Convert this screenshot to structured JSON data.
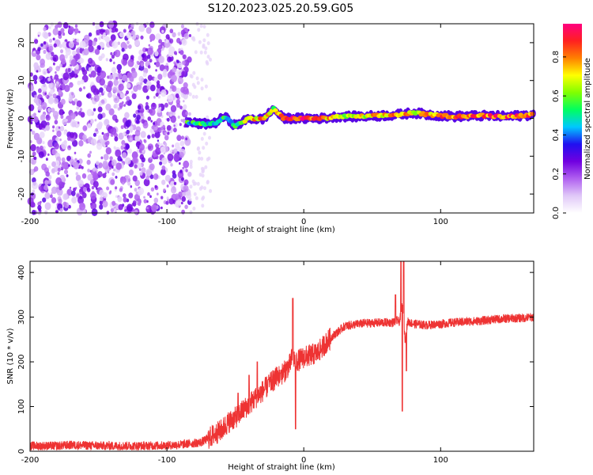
{
  "title": "S120.2023.025.20.59.G05",
  "chart_data": [
    {
      "type": "heatmap",
      "xlabel": "Height of straight line (km)",
      "ylabel": "Frequency (Hz)",
      "xlim": [
        -200,
        168
      ],
      "ylim": [
        -25,
        25
      ],
      "xticks": [
        -200,
        -100,
        0,
        100
      ],
      "yticks": [
        -20,
        -10,
        0,
        10,
        20
      ],
      "colorbar": {
        "label": "Normalized spectral amplitude",
        "range": [
          0.0,
          0.97
        ],
        "ticks": [
          "0.0",
          "0.2",
          "0.4",
          "0.6",
          "0.8"
        ],
        "colors": [
          "#ffffff",
          "#e0c8f8",
          "#b060f0",
          "#7000e0",
          "#2010f0",
          "#00c8ff",
          "#00ff60",
          "#80ff00",
          "#ffff00",
          "#ff8000",
          "#ff2020",
          "#ff0080"
        ]
      },
      "noise_region_x": [
        -200,
        -83
      ],
      "noise_region_amplitude": [
        0.05,
        0.3
      ],
      "signal_trace": {
        "x": [
          -85,
          -75,
          -65,
          -58,
          -50,
          -40,
          -30,
          -22,
          -15,
          -5,
          5,
          15,
          25,
          40,
          55,
          70,
          80,
          90,
          110,
          130,
          150,
          168
        ],
        "frequency": [
          -1,
          -1.5,
          -1.3,
          0.5,
          -2,
          0,
          -0.3,
          2.5,
          0,
          0,
          0,
          0,
          0.5,
          0.5,
          0.7,
          1,
          1.5,
          1,
          0.5,
          0.7,
          0.5,
          1
        ],
        "amplitude": [
          0.5,
          0.55,
          0.5,
          0.55,
          0.5,
          0.7,
          0.8,
          0.6,
          0.85,
          0.9,
          0.9,
          0.85,
          0.65,
          0.7,
          0.75,
          0.8,
          0.7,
          0.8,
          0.85,
          0.85,
          0.85,
          0.85
        ]
      }
    },
    {
      "type": "line",
      "xlabel": "Height of straight line (km)",
      "ylabel": "SNR (10 * v/v)",
      "xlim": [
        -200,
        168
      ],
      "ylim": [
        0,
        425
      ],
      "xticks": [
        -200,
        -100,
        0,
        100
      ],
      "yticks": [
        0,
        100,
        200,
        300,
        400
      ],
      "color": "#ee3333",
      "series": [
        {
          "x": [
            -200,
            -180,
            -170,
            -160,
            -140,
            -120,
            -100,
            -90,
            -80,
            -75,
            -70,
            -60,
            -55,
            -50,
            -45,
            -40,
            -35,
            -30,
            -25,
            -20,
            -15,
            -10,
            -8,
            -6,
            0,
            10,
            20,
            30,
            40,
            50,
            60,
            65,
            68,
            70,
            72,
            74,
            76,
            80,
            90,
            100,
            110,
            120,
            130,
            140,
            150,
            160,
            168
          ],
          "y": [
            12,
            12,
            14,
            13,
            12,
            12,
            13,
            15,
            18,
            20,
            28,
            48,
            65,
            75,
            90,
            105,
            120,
            135,
            150,
            165,
            175,
            195,
            215,
            200,
            210,
            220,
            255,
            280,
            285,
            287,
            288,
            288,
            292,
            290,
            330,
            250,
            290,
            285,
            282,
            285,
            288,
            290,
            292,
            295,
            297,
            298,
            300
          ]
        }
      ],
      "spikes": [
        {
          "x": -48,
          "y": 130
        },
        {
          "x": -40,
          "y": 170
        },
        {
          "x": -34,
          "y": 200
        },
        {
          "x": -26,
          "y": 160
        },
        {
          "x": -17,
          "y": 175
        },
        {
          "x": -8,
          "y": 342
        },
        {
          "x": -6,
          "y": 50
        },
        {
          "x": 67,
          "y": 350
        },
        {
          "x": 71,
          "y": 440
        },
        {
          "x": 72,
          "y": 90
        },
        {
          "x": 73,
          "y": 430
        },
        {
          "x": 75,
          "y": 180
        }
      ],
      "noise_amplitude": 10
    }
  ]
}
